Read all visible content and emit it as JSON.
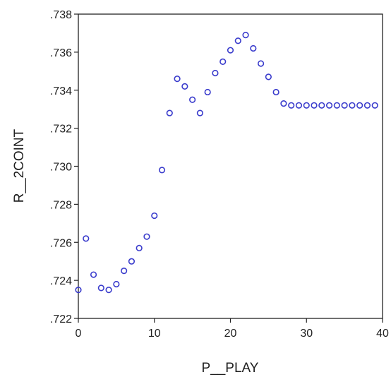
{
  "chart_data": {
    "type": "scatter",
    "title": "",
    "xlabel": "P__PLAY",
    "ylabel": "R__2COINT",
    "xlim": [
      0,
      40
    ],
    "ylim": [
      0.722,
      0.738
    ],
    "x_ticks": [
      "0",
      "10",
      "20",
      "30",
      "40"
    ],
    "y_ticks": [
      ".722",
      ".724",
      ".726",
      ".728",
      ".730",
      ".732",
      ".734",
      ".736",
      ".738"
    ],
    "grid": false,
    "legend": "none",
    "marker": "open-circle",
    "marker_color": "#3a3ccc",
    "points": [
      {
        "x": 0,
        "y": 0.7235
      },
      {
        "x": 1,
        "y": 0.7262
      },
      {
        "x": 2,
        "y": 0.7243
      },
      {
        "x": 3,
        "y": 0.7236
      },
      {
        "x": 4,
        "y": 0.7235
      },
      {
        "x": 5,
        "y": 0.7238
      },
      {
        "x": 6,
        "y": 0.7245
      },
      {
        "x": 7,
        "y": 0.725
      },
      {
        "x": 8,
        "y": 0.7257
      },
      {
        "x": 9,
        "y": 0.7263
      },
      {
        "x": 10,
        "y": 0.7274
      },
      {
        "x": 11,
        "y": 0.7298
      },
      {
        "x": 12,
        "y": 0.7328
      },
      {
        "x": 13,
        "y": 0.7346
      },
      {
        "x": 14,
        "y": 0.7342
      },
      {
        "x": 15,
        "y": 0.7335
      },
      {
        "x": 16,
        "y": 0.7328
      },
      {
        "x": 17,
        "y": 0.7339
      },
      {
        "x": 18,
        "y": 0.7349
      },
      {
        "x": 19,
        "y": 0.7355
      },
      {
        "x": 20,
        "y": 0.7361
      },
      {
        "x": 21,
        "y": 0.7366
      },
      {
        "x": 22,
        "y": 0.7369
      },
      {
        "x": 23,
        "y": 0.7362
      },
      {
        "x": 24,
        "y": 0.7354
      },
      {
        "x": 25,
        "y": 0.7347
      },
      {
        "x": 26,
        "y": 0.7339
      },
      {
        "x": 27,
        "y": 0.7333
      },
      {
        "x": 28,
        "y": 0.7332
      },
      {
        "x": 29,
        "y": 0.7332
      },
      {
        "x": 30,
        "y": 0.7332
      },
      {
        "x": 31,
        "y": 0.7332
      },
      {
        "x": 32,
        "y": 0.7332
      },
      {
        "x": 33,
        "y": 0.7332
      },
      {
        "x": 34,
        "y": 0.7332
      },
      {
        "x": 35,
        "y": 0.7332
      },
      {
        "x": 36,
        "y": 0.7332
      },
      {
        "x": 37,
        "y": 0.7332
      },
      {
        "x": 38,
        "y": 0.7332
      },
      {
        "x": 39,
        "y": 0.7332
      }
    ]
  }
}
